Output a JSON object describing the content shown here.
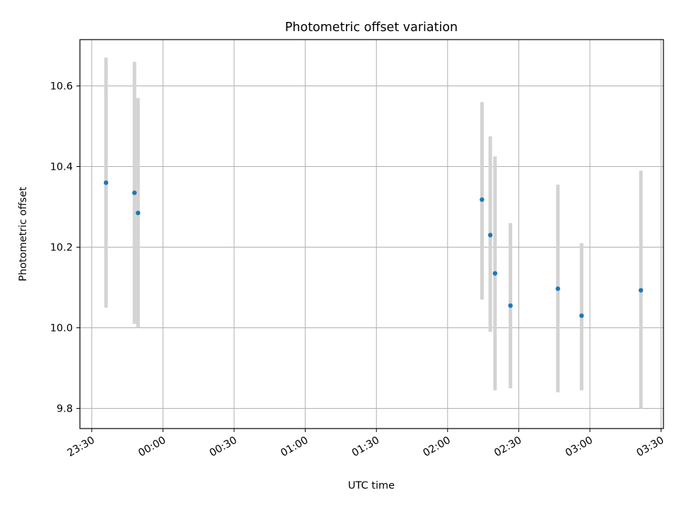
{
  "chart_data": {
    "type": "scatter",
    "title": "Photometric offset variation",
    "xlabel": "UTC time",
    "ylabel": "Photometric offset",
    "x_tick_labels": [
      "23:30",
      "00:00",
      "00:30",
      "01:00",
      "01:30",
      "02:00",
      "02:30",
      "03:00",
      "03:30"
    ],
    "x_ticks_minutes": [
      -30,
      0,
      30,
      60,
      90,
      120,
      150,
      180,
      210
    ],
    "xlim_minutes": [
      -35,
      211
    ],
    "y_ticks": [
      9.8,
      10.0,
      10.2,
      10.4,
      10.6
    ],
    "y_tick_labels": [
      "9.8",
      "10.0",
      "10.2",
      "10.4",
      "10.6"
    ],
    "ylim": [
      9.75,
      10.715
    ],
    "grid": true,
    "marker_color": "#1f77b4",
    "errorbar_color": "#d3d3d3",
    "points": [
      {
        "time": "23:36",
        "minutes": -24,
        "y": 10.36,
        "yerr_low": 10.05,
        "yerr_high": 10.67
      },
      {
        "time": "23:48",
        "minutes": -12,
        "y": 10.335,
        "yerr_low": 10.01,
        "yerr_high": 10.66
      },
      {
        "time": "23:49",
        "minutes": -10.5,
        "y": 10.285,
        "yerr_low": 10.0,
        "yerr_high": 10.57
      },
      {
        "time": "02:14",
        "minutes": 134.5,
        "y": 10.318,
        "yerr_low": 10.07,
        "yerr_high": 10.56
      },
      {
        "time": "02:18",
        "minutes": 138,
        "y": 10.23,
        "yerr_low": 9.99,
        "yerr_high": 10.475
      },
      {
        "time": "02:20",
        "minutes": 140,
        "y": 10.135,
        "yerr_low": 9.845,
        "yerr_high": 10.425
      },
      {
        "time": "02:26",
        "minutes": 146.5,
        "y": 10.055,
        "yerr_low": 9.85,
        "yerr_high": 10.26
      },
      {
        "time": "02:46",
        "minutes": 166.5,
        "y": 10.097,
        "yerr_low": 9.84,
        "yerr_high": 10.355
      },
      {
        "time": "02:56",
        "minutes": 176.5,
        "y": 10.03,
        "yerr_low": 9.845,
        "yerr_high": 10.21
      },
      {
        "time": "03:21",
        "minutes": 201.5,
        "y": 10.093,
        "yerr_low": 9.8,
        "yerr_high": 10.39
      }
    ]
  }
}
